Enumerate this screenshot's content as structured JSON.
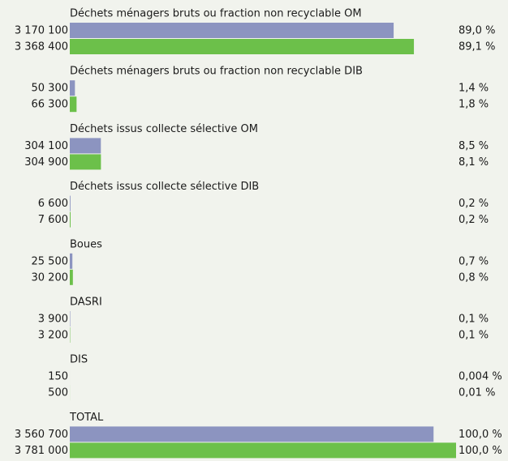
{
  "chart_data": {
    "type": "bar",
    "orientation": "horizontal",
    "categories": [
      "Déchets ménagers bruts ou fraction non recyclable  OM",
      "Déchets ménagers bruts ou fraction non recyclable  DIB",
      "Déchets issus collecte sélective OM",
      "Déchets issus collecte sélective DIB",
      "Boues",
      "DASRI",
      "DIS",
      "TOTAL"
    ],
    "xlim": [
      0,
      3781000
    ],
    "series": [
      {
        "color": "#8c94c0",
        "values": [
          3170100,
          50300,
          304100,
          6600,
          25500,
          3900,
          150,
          3560700
        ],
        "value_labels": [
          "3 170 100",
          "50 300",
          "304 100",
          "6 600",
          "25 500",
          "3 900",
          "150",
          "3 560 700"
        ],
        "shares": [
          89.0,
          1.4,
          8.5,
          0.2,
          0.7,
          0.1,
          0.004,
          100.0
        ],
        "share_labels": [
          "89,0 %",
          "1,4 %",
          "8,5 %",
          "0,2 %",
          "0,7 %",
          "0,1 %",
          "0,004 %",
          "100,0 %"
        ]
      },
      {
        "color": "#6cc04a",
        "values": [
          3368400,
          66300,
          304900,
          7600,
          30200,
          3200,
          500,
          3781000
        ],
        "value_labels": [
          "3 368 400",
          "66 300",
          "304 900",
          "7 600",
          "30 200",
          "3 200",
          "500",
          "3 781 000"
        ],
        "shares": [
          89.1,
          1.8,
          8.1,
          0.2,
          0.8,
          0.1,
          0.01,
          100.0
        ],
        "share_labels": [
          "89,1 %",
          "1,8 %",
          "8,1 %",
          "0,2 %",
          "0,8 %",
          "0,1 %",
          "0,01 %",
          "100,0 %"
        ]
      }
    ]
  }
}
